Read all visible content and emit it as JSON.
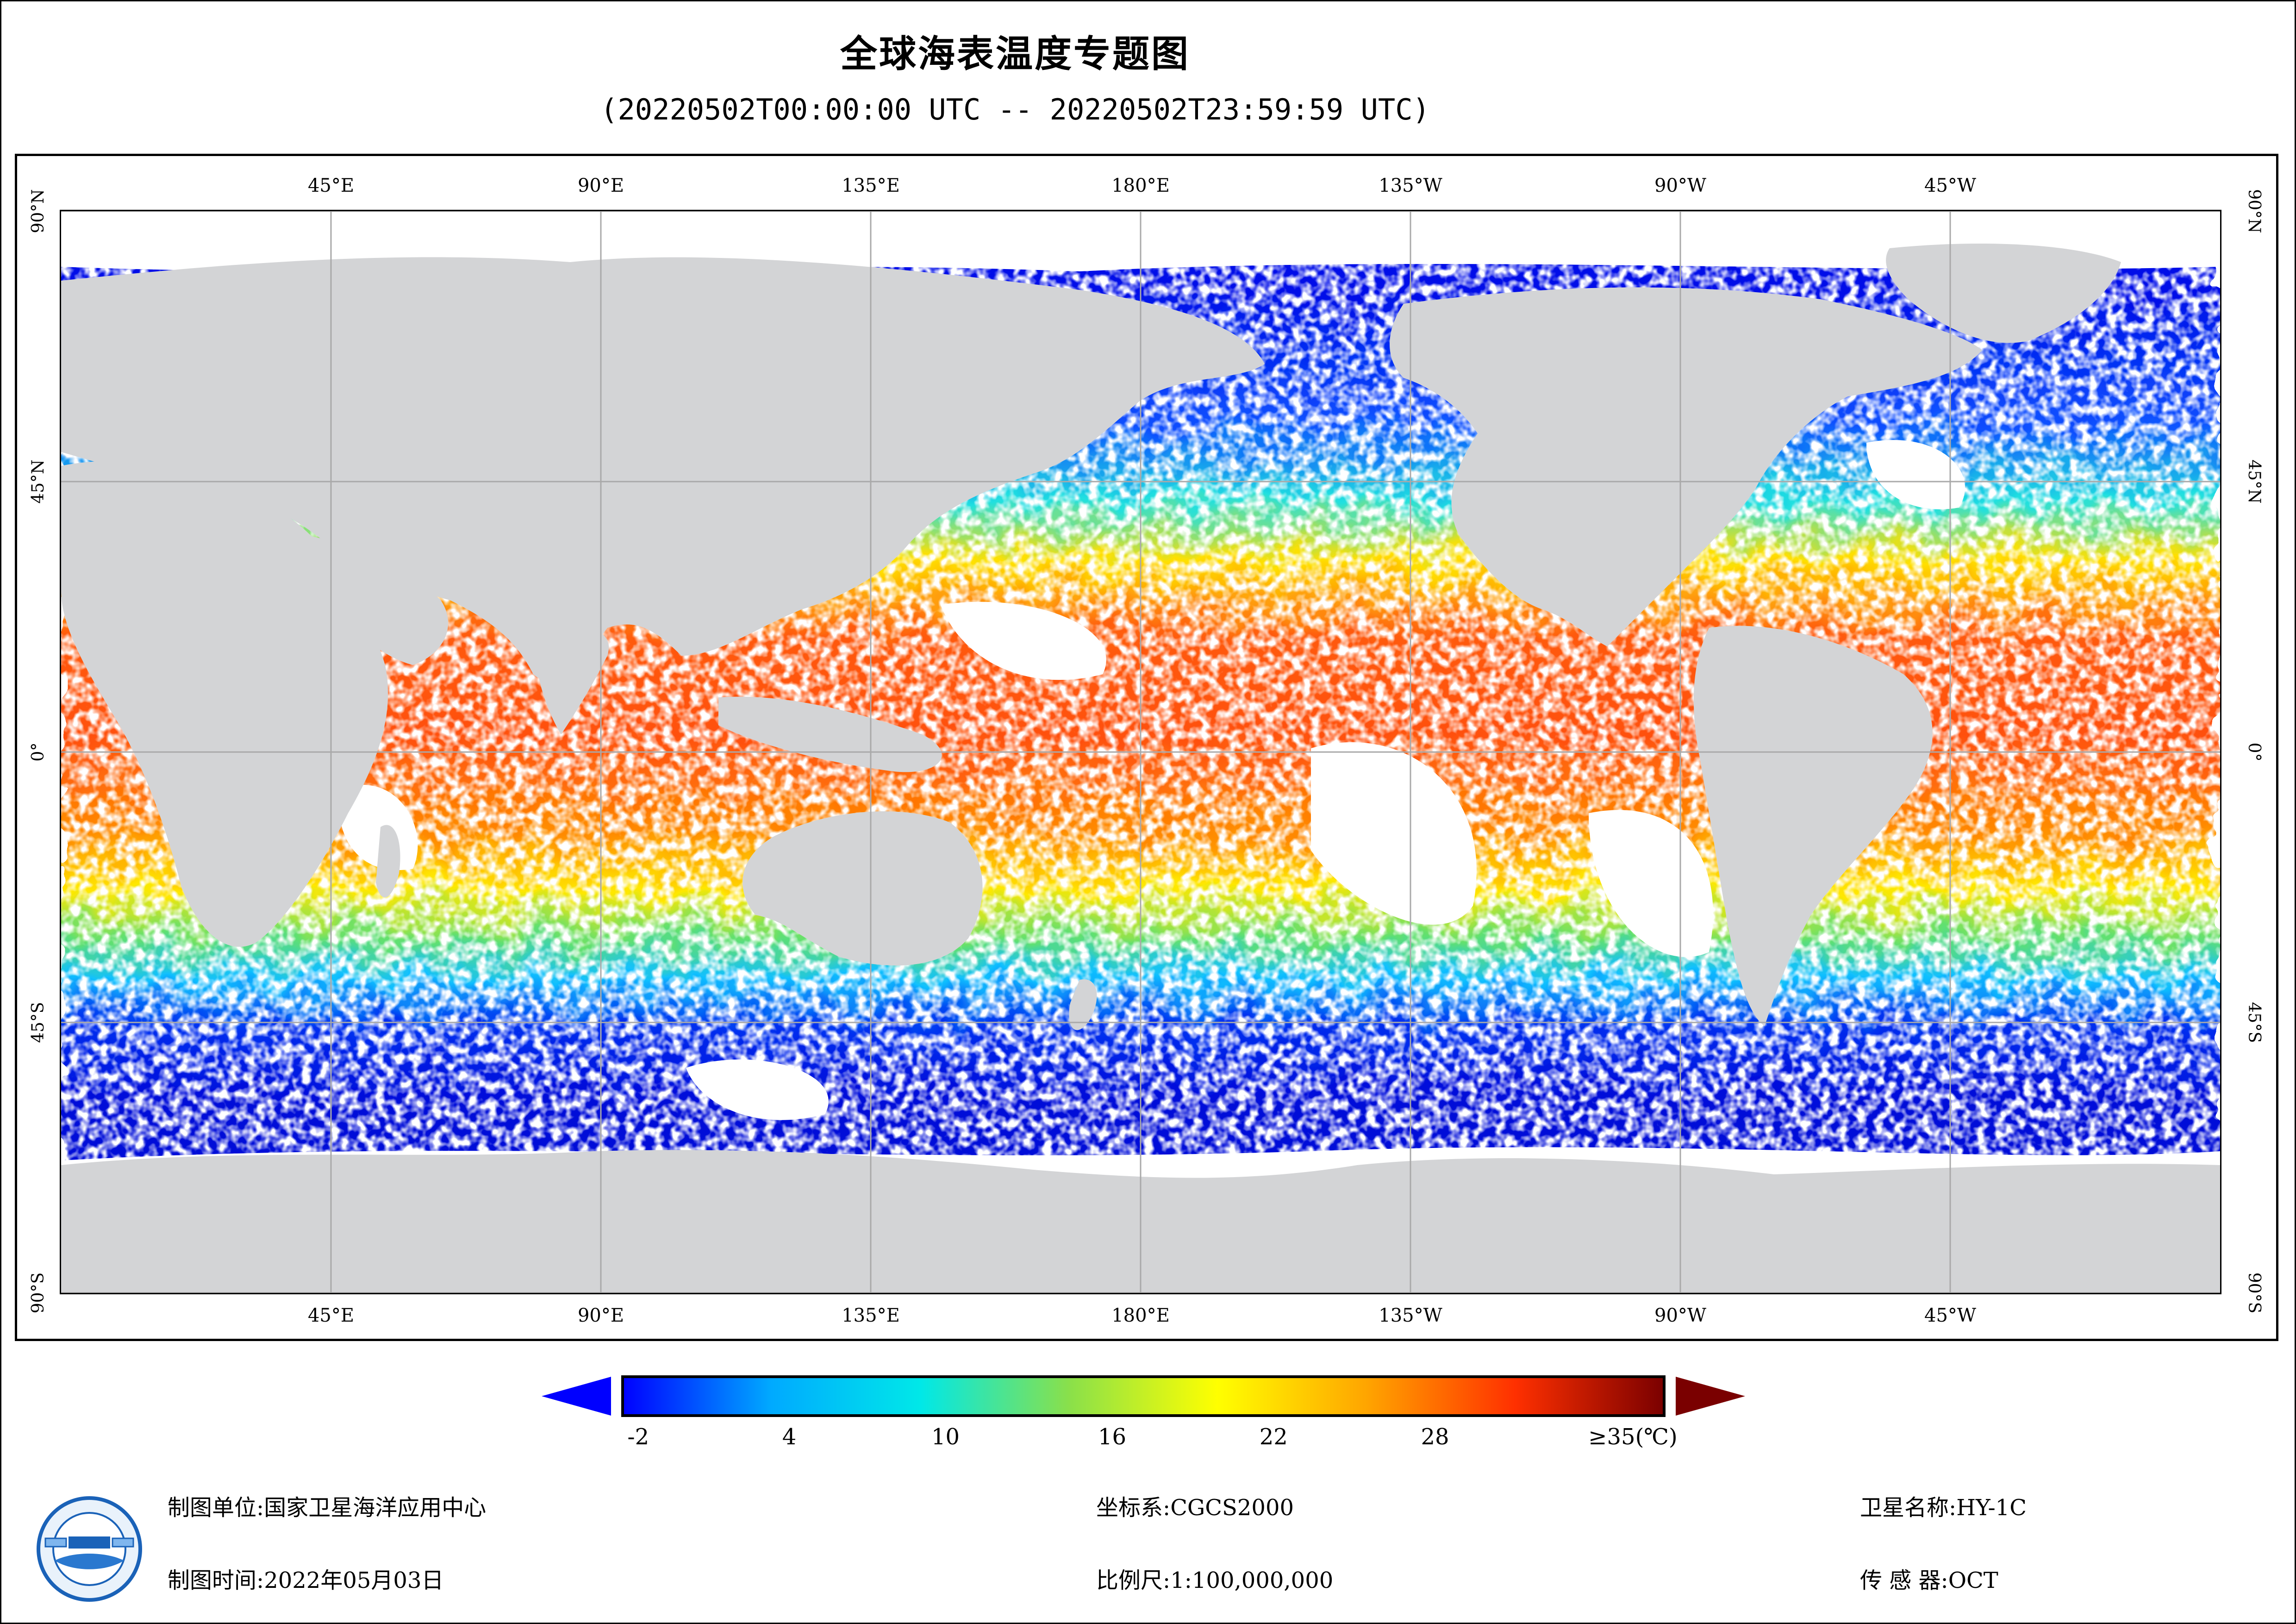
{
  "title": "全球海表温度专题图",
  "subtitle": "(20220502T00:00:00 UTC -- 20220502T23:59:59 UTC)",
  "map": {
    "lon_labels": [
      "45°E",
      "90°E",
      "135°E",
      "180°E",
      "135°W",
      "90°W",
      "45°W"
    ],
    "lat_labels": [
      "90°N",
      "45°N",
      "0°",
      "45°S",
      "90°S"
    ],
    "colors": {
      "land": "#d3d4d6",
      "no_data": "#ffffff",
      "grid": "#a9a9a9"
    }
  },
  "colorbar": {
    "tick_labels": [
      "-2",
      "4",
      "10",
      "16",
      "22",
      "28",
      "≥35(℃)"
    ],
    "colors": [
      "#0000ff",
      "#00aaff",
      "#00e8e8",
      "#8ae04a",
      "#ffff00",
      "#ffa500",
      "#ff3000",
      "#7a0000"
    ],
    "under_color": "#0000ff",
    "over_color": "#7a0000"
  },
  "footer": {
    "producer_label": "制图单位:",
    "producer_value": "国家卫星海洋应用中心",
    "date_label": "制图时间:",
    "date_value": "2022年05月03日",
    "crs_label": "坐标系:",
    "crs_value": "CGCS2000",
    "scale_label": "比例尺:",
    "scale_value": "1:100,000,000",
    "satellite_label": "卫星名称:",
    "satellite_value": "HY-1C",
    "sensor_label": "传 感 器:",
    "sensor_value": "OCT"
  }
}
